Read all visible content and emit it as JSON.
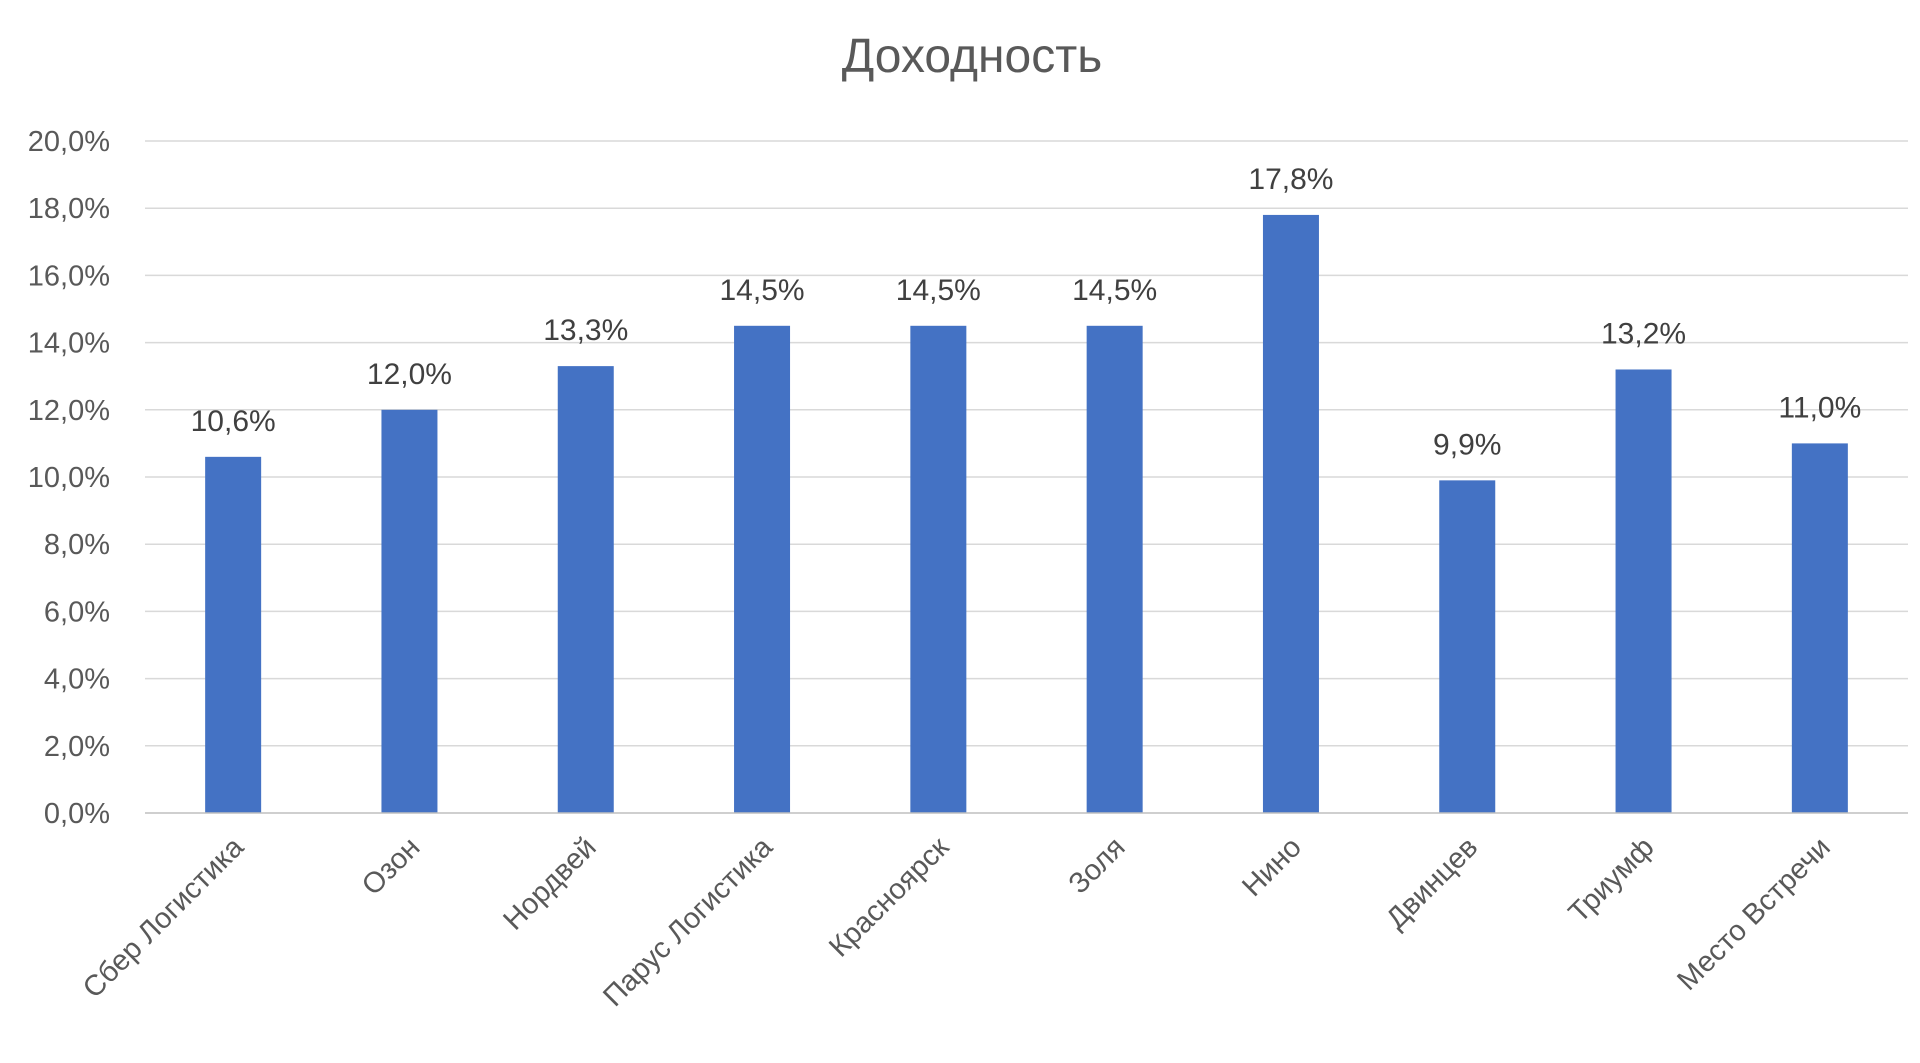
{
  "chart_data": {
    "type": "bar",
    "title": "Доходность",
    "xlabel": "",
    "ylabel": "",
    "ylim": [
      0,
      20
    ],
    "grid": true,
    "legend": "none",
    "bar_color": "#4472c4",
    "y_ticks": [
      "0,0%",
      "2,0%",
      "4,0%",
      "6,0%",
      "8,0%",
      "10,0%",
      "12,0%",
      "14,0%",
      "16,0%",
      "18,0%",
      "20,0%"
    ],
    "categories": [
      "Сбер Логистика",
      "Озон",
      "Нордвей",
      "Парус Логистика",
      "Красноярск",
      "Золя",
      "Нино",
      "Двинцев",
      "Триумф",
      "Место Встречи"
    ],
    "values": [
      10.6,
      12.0,
      13.3,
      14.5,
      14.5,
      14.5,
      17.8,
      9.9,
      13.2,
      11.0
    ],
    "data_labels": [
      "10,6%",
      "12,0%",
      "13,3%",
      "14,5%",
      "14,5%",
      "14,5%",
      "17,8%",
      "9,9%",
      "13,2%",
      "11,0%"
    ]
  }
}
